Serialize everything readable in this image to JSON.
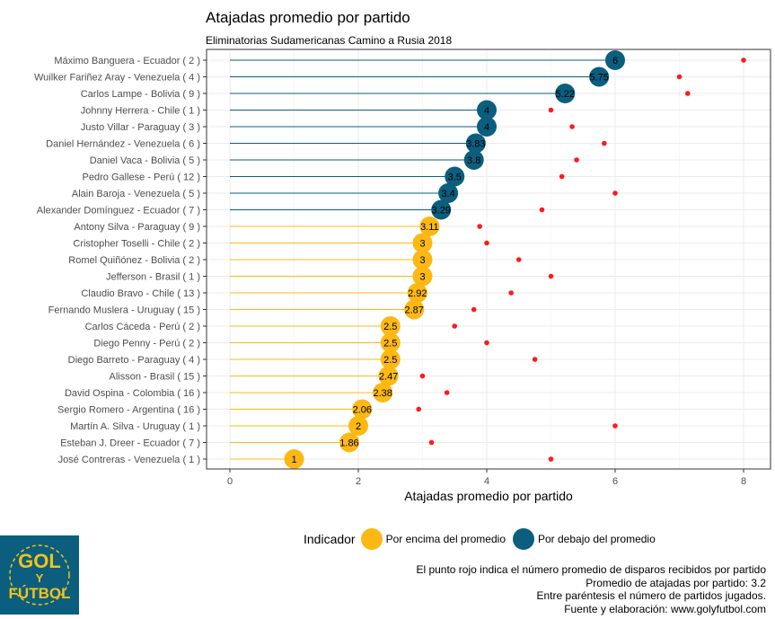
{
  "chart_data": {
    "type": "lollipop",
    "title": "Atajadas promedio por partido",
    "subtitle": "Eliminatorias Sudamericanas Camino a Rusia 2018",
    "xlabel": "Atajadas promedio por partido",
    "xlim": [
      0,
      8
    ],
    "xticks": [
      "0",
      "2",
      "4",
      "6",
      "8"
    ],
    "grid": true,
    "legend_title": "Indicador",
    "legend_position": "bottom",
    "legend": [
      {
        "label": "Por encima del promedio",
        "color": "#FDB813"
      },
      {
        "label": "Por debajo del promedio",
        "color": "#0B5E7E"
      }
    ],
    "dot_color": "#FF1A1A",
    "categories": [
      "Máximo Banguera - Ecuador ( 2 )",
      "Wuilker Fariñez Aray - Venezuela ( 4 )",
      "Carlos Lampe - Bolivia ( 9 )",
      "Johnny Herrera - Chile ( 1 )",
      "Justo Villar - Paraguay ( 3 )",
      "Daniel Hernández - Venezuela ( 6 )",
      "Daniel Vaca - Bolivia ( 5 )",
      "Pedro Gallese - Perú ( 12 )",
      "Alain Baroja - Venezuela ( 5 )",
      "Alexander Domínguez - Ecuador ( 7 )",
      "Antony Silva - Paraguay ( 9 )",
      "Cristopher Toselli - Chile ( 2 )",
      "Romel Quiñónez - Bolivia ( 2 )",
      "Jefferson - Brasil ( 1 )",
      "Claudio Bravo - Chile ( 13 )",
      "Fernando Muslera - Uruguay ( 15 )",
      "Carlos Cáceda - Perú ( 2 )",
      "Diego Penny - Perú ( 2 )",
      "Diego Barreto - Paraguay ( 4 )",
      "Alisson - Brasil ( 15 )",
      "David Ospina - Colombia ( 16 )",
      "Sergio Romero - Argentina ( 16 )",
      "Martín A. Silva - Uruguay ( 1 )",
      "Esteban J. Dreer - Ecuador ( 7 )",
      "José Contreras - Venezuela ( 1 )"
    ],
    "saves": [
      6,
      5.75,
      5.22,
      4,
      4,
      3.83,
      3.8,
      3.5,
      3.4,
      3.29,
      3.11,
      3,
      3,
      3,
      2.92,
      2.87,
      2.5,
      2.5,
      2.5,
      2.47,
      2.38,
      2.06,
      2,
      1.86,
      1
    ],
    "saves_labels": [
      "6",
      "5.75",
      "5.22",
      "4",
      "4",
      "3.83",
      "3.8",
      "3.5",
      "3.4",
      "3.29",
      "3.11",
      "3",
      "3",
      "3",
      "2.92",
      "2.87",
      "2.5",
      "2.5",
      "2.5",
      "2.47",
      "2.38",
      "2.06",
      "2",
      "1.86",
      "1"
    ],
    "group": [
      "debajo",
      "debajo",
      "debajo",
      "debajo",
      "debajo",
      "debajo",
      "debajo",
      "debajo",
      "debajo",
      "debajo",
      "encima",
      "encima",
      "encima",
      "encima",
      "encima",
      "encima",
      "encima",
      "encima",
      "encima",
      "encima",
      "encima",
      "encima",
      "encima",
      "encima",
      "encima"
    ],
    "shots": [
      8,
      7,
      7.13,
      5,
      5.33,
      5.83,
      5.4,
      5.17,
      6,
      4.86,
      3.89,
      4,
      4.5,
      5,
      4.38,
      3.8,
      3.5,
      4,
      4.75,
      3,
      3.38,
      2.94,
      6,
      3.14,
      5
    ]
  },
  "notes": [
    "El punto rojo indica el número promedio de disparos recibidos por partido",
    "Promedio de atajadas por partido: 3.2",
    "Entre paréntesis el número de partidos jugados.",
    "Fuente y elaboración: www.golyfutbol.com"
  ],
  "logo": {
    "text": "GOL Y FÚTBOL",
    "bg": "#0B5E7E",
    "fg": "#F2C318"
  }
}
